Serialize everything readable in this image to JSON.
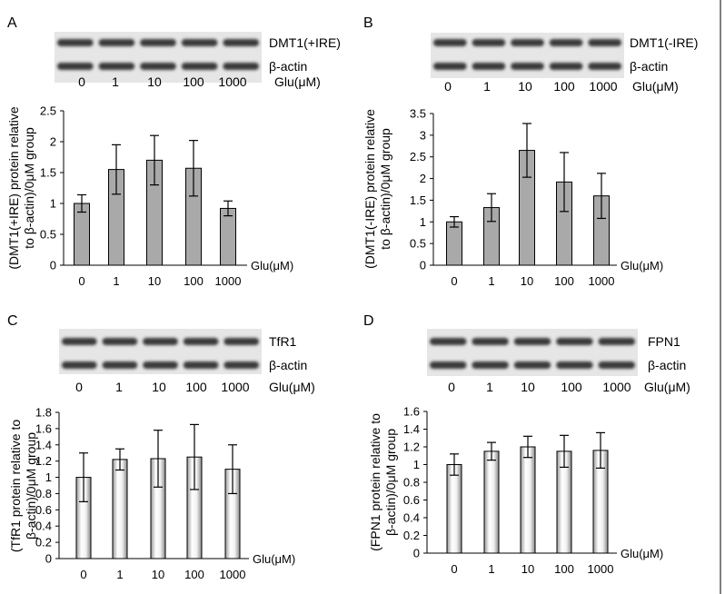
{
  "panels": [
    {
      "letter": "A",
      "blot_labels": [
        "DMT1(+IRE)",
        "β-actin"
      ],
      "blot_lane_labels": [
        "0",
        "1",
        "10",
        "100",
        "1000"
      ],
      "blot_unit_label": "Glu(μM)",
      "chart_data": {
        "type": "bar",
        "categories": [
          "0",
          "1",
          "10",
          "100",
          "1000"
        ],
        "values": [
          1.0,
          1.55,
          1.7,
          1.57,
          0.92
        ],
        "errors": [
          0.14,
          0.4,
          0.4,
          0.45,
          0.12
        ],
        "significance": [
          "",
          "**",
          "**",
          "**",
          ""
        ],
        "ylabel_line1": "(DMT1(+IRE) protein relative",
        "ylabel_line2": "to β-actin)/0μM group",
        "xlabel": "Glu(μM)",
        "ylim": [
          0,
          2.5
        ],
        "yticks": [
          "0",
          "0.5",
          "1",
          "1.5",
          "2",
          "2.5"
        ],
        "bar_style": "gray"
      }
    },
    {
      "letter": "B",
      "blot_labels": [
        "DMT1(-IRE)",
        "β-actin"
      ],
      "blot_lane_labels": [
        "0",
        "1",
        "10",
        "100",
        "1000"
      ],
      "blot_unit_label": "Glu(μM)",
      "chart_data": {
        "type": "bar",
        "categories": [
          "0",
          "1",
          "10",
          "100",
          "1000"
        ],
        "values": [
          1.0,
          1.33,
          2.65,
          1.92,
          1.6
        ],
        "errors": [
          0.12,
          0.32,
          0.62,
          0.68,
          0.52
        ],
        "significance": [
          "",
          "",
          "**",
          "**",
          "*"
        ],
        "ylabel_line1": "(DMT1(-IRE) protein relative",
        "ylabel_line2": "to β-actin)/0μM group",
        "xlabel": "Glu(μM)",
        "ylim": [
          0,
          3.5
        ],
        "yticks": [
          "0",
          "0.5",
          "1",
          "1.5",
          "2",
          "2.5",
          "3",
          "3.5"
        ],
        "bar_style": "gray"
      }
    },
    {
      "letter": "C",
      "blot_labels": [
        "TfR1",
        "β-actin"
      ],
      "blot_lane_labels": [
        "0",
        "1",
        "10",
        "100",
        "1000"
      ],
      "blot_unit_label": "Glu(μM)",
      "chart_data": {
        "type": "bar",
        "categories": [
          "0",
          "1",
          "10",
          "100",
          "1000"
        ],
        "values": [
          1.0,
          1.22,
          1.23,
          1.25,
          1.1
        ],
        "errors": [
          0.3,
          0.13,
          0.35,
          0.4,
          0.3
        ],
        "significance": [
          "",
          "",
          "",
          "",
          ""
        ],
        "ylabel_line1": "(TfR1 protein relative to",
        "ylabel_line2": "β-actin)/0μM group",
        "xlabel": "Glu(μM)",
        "ylim": [
          0,
          1.8
        ],
        "yticks": [
          "0",
          "0.2",
          "0.4",
          "0.6",
          "0.8",
          "1",
          "1.2",
          "1.4",
          "1.6",
          "1.8"
        ],
        "bar_style": "cylinder"
      }
    },
    {
      "letter": "D",
      "blot_labels": [
        "FPN1",
        "β-actin"
      ],
      "blot_lane_labels": [
        "0",
        "1",
        "10",
        "100",
        "1000"
      ],
      "blot_unit_label": "Glu(μM)",
      "chart_data": {
        "type": "bar",
        "categories": [
          "0",
          "1",
          "10",
          "100",
          "1000"
        ],
        "values": [
          1.0,
          1.15,
          1.2,
          1.15,
          1.16
        ],
        "errors": [
          0.12,
          0.1,
          0.12,
          0.18,
          0.2
        ],
        "significance": [
          "",
          "",
          "",
          "",
          ""
        ],
        "ylabel_line1": "(FPN1 protein relative to",
        "ylabel_line2": "β-actin)/0μM group",
        "xlabel": "Glu(μM)",
        "ylim": [
          0,
          1.6
        ],
        "yticks": [
          "0",
          "0.2",
          "0.4",
          "0.6",
          "0.8",
          "1",
          "1.2",
          "1.4",
          "1.6"
        ],
        "bar_style": "cylinder"
      }
    }
  ],
  "colors": {
    "bar_gray": "#a9a9a9",
    "axis": "#000000",
    "blot_band": "#3a3a3a",
    "blot_bg": "#e6e6e6"
  }
}
